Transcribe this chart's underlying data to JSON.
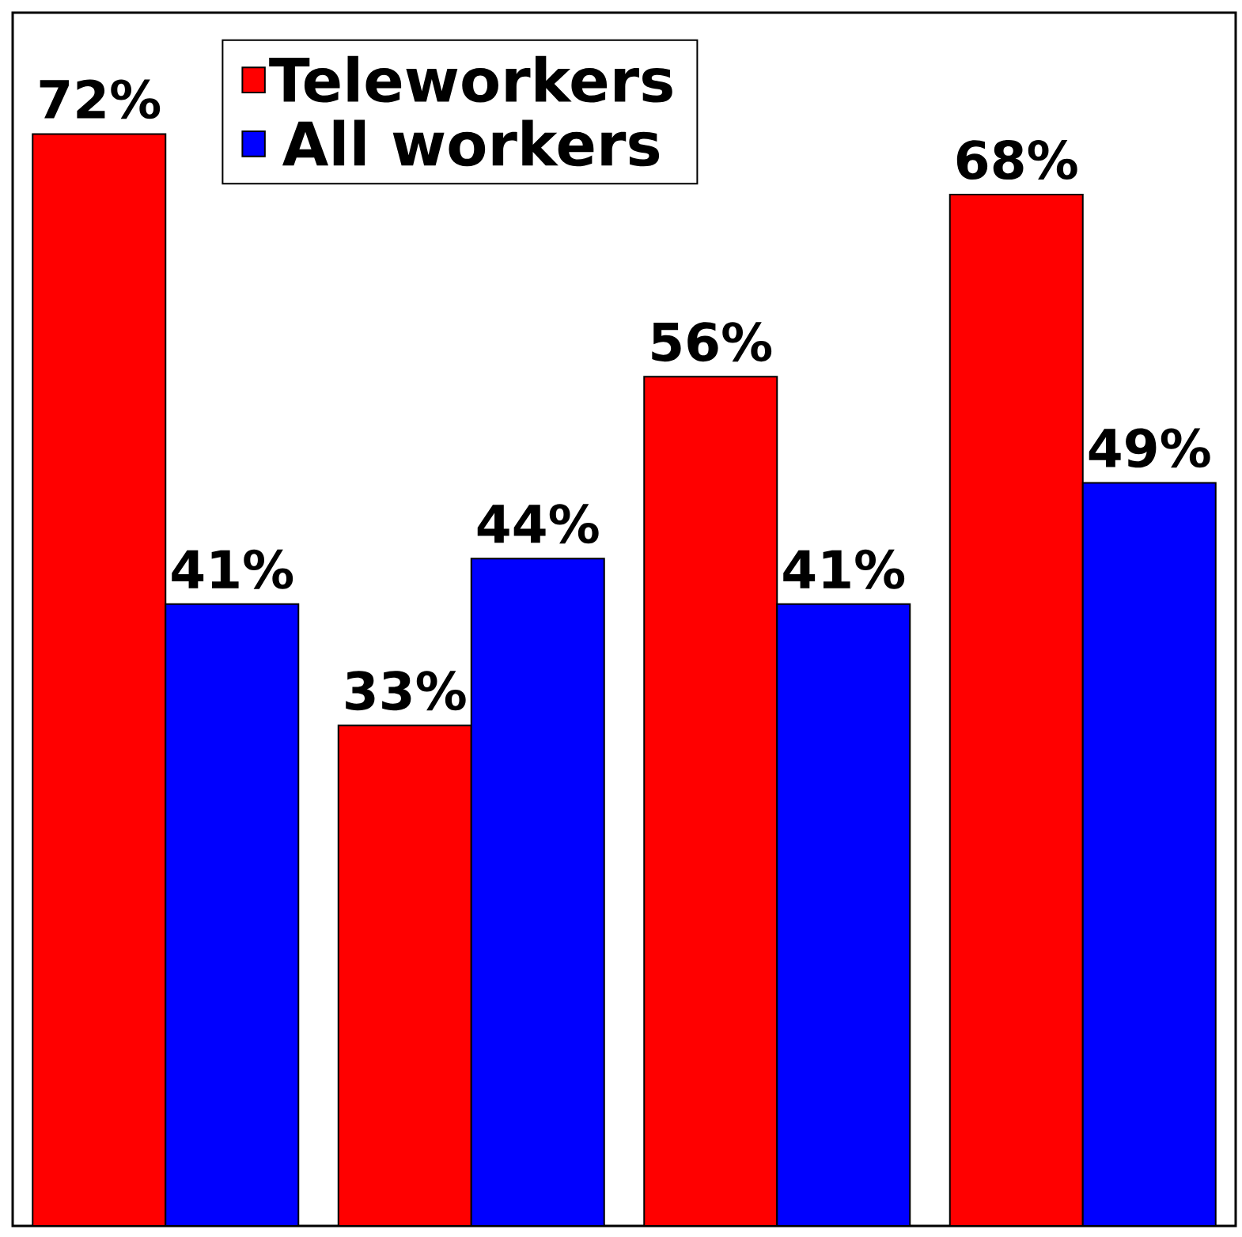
{
  "chart_data": {
    "type": "bar",
    "categories": [
      null,
      null,
      null,
      null
    ],
    "series": [
      {
        "name": "Teleworkers",
        "color": "#ff0000",
        "values": [
          72,
          33,
          56,
          68
        ],
        "value_labels": [
          "72%",
          "33%",
          "56%",
          "68%"
        ]
      },
      {
        "name": "All workers",
        "color": "#0000ff",
        "values": [
          41,
          44,
          41,
          49
        ],
        "value_labels": [
          "41%",
          "44%",
          "41%",
          "49%"
        ]
      }
    ],
    "ylim": [
      0,
      80
    ],
    "legend": "top",
    "tick_labels": false
  }
}
